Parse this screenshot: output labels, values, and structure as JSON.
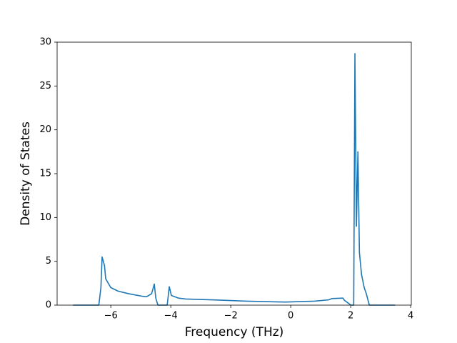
{
  "chart_data": {
    "type": "line",
    "x_label": "Frequency (THz)",
    "y_label": "Density of States",
    "x": [
      -7.26,
      -6.4,
      -6.33,
      -6.29,
      -6.21,
      -6.17,
      -6.0,
      -5.76,
      -5.4,
      -4.93,
      -4.81,
      -4.64,
      -4.55,
      -4.5,
      -4.43,
      -4.12,
      -4.05,
      -3.98,
      -3.74,
      -3.5,
      -2.55,
      -1.48,
      -0.17,
      0.79,
      1.26,
      1.38,
      1.74,
      1.79,
      1.93,
      2.0,
      2.1,
      2.14,
      2.19,
      2.24,
      2.29,
      2.36,
      2.45,
      2.52,
      2.62,
      3.48
    ],
    "values": [
      0,
      0,
      2,
      5.5,
      4.5,
      3,
      2,
      1.6,
      1.3,
      1.0,
      0.95,
      1.3,
      2.4,
      0.8,
      0,
      0,
      2.1,
      1.1,
      0.8,
      0.7,
      0.6,
      0.45,
      0.35,
      0.45,
      0.6,
      0.75,
      0.8,
      0.55,
      0.2,
      0,
      0,
      28.7,
      9,
      17.5,
      6,
      3.5,
      2,
      1.3,
      0,
      0
    ],
    "color": "#1f77b4",
    "xlim": [
      -7.79,
      4.02
    ],
    "xticks": [
      {
        "value": -6,
        "label": "−6"
      },
      {
        "value": -4,
        "label": "−4"
      },
      {
        "value": -2,
        "label": "−2"
      },
      0,
      2,
      4
    ],
    "ylim": [
      0,
      30
    ],
    "yticks": [
      0,
      5,
      10,
      15,
      20,
      25,
      30
    ],
    "grid": false
  }
}
